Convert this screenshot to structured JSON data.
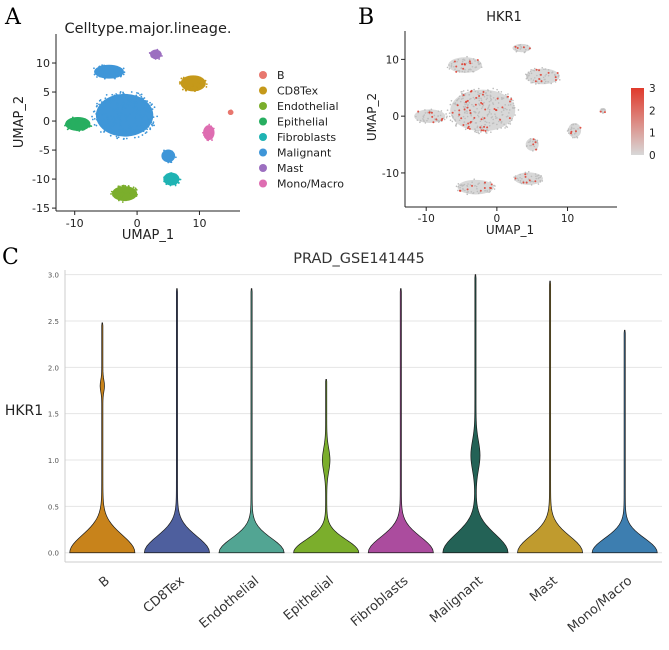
{
  "chart_data": [
    {
      "panel": "A",
      "type": "scatter",
      "title": "Celltype.major.lineage.",
      "xlabel": "UMAP_1",
      "ylabel": "UMAP_2",
      "xticks": [
        -10,
        0,
        10
      ],
      "yticks": [
        10,
        5,
        0,
        -5,
        -10,
        -15
      ],
      "xlim": [
        -13,
        16.5
      ],
      "ylim": [
        -15.5,
        15
      ],
      "legend": [
        {
          "label": "B",
          "color": "#E8776E"
        },
        {
          "label": "CD8Tex",
          "color": "#C5991A"
        },
        {
          "label": "Endothelial",
          "color": "#7BAE2C"
        },
        {
          "label": "Epithelial",
          "color": "#27AE60"
        },
        {
          "label": "Fibroblasts",
          "color": "#1FB3B3"
        },
        {
          "label": "Malignant",
          "color": "#3F96D8"
        },
        {
          "label": "Mast",
          "color": "#9C6FC0"
        },
        {
          "label": "Mono/Macro",
          "color": "#DE6DB1"
        }
      ],
      "clusters": [
        {
          "celltype": "Malignant",
          "cx": -2,
          "cy": 1,
          "rx": 5,
          "ry": 4
        },
        {
          "celltype": "Malignant",
          "cx": -4.5,
          "cy": 8.5,
          "rx": 2.6,
          "ry": 1.3
        },
        {
          "celltype": "Malignant",
          "cx": 5,
          "cy": -6,
          "rx": 1.2,
          "ry": 1.2
        },
        {
          "celltype": "Epithelial",
          "cx": -9.5,
          "cy": -0.5,
          "rx": 2.2,
          "ry": 1.3
        },
        {
          "celltype": "Endothelial",
          "cx": -2,
          "cy": -12.5,
          "rx": 2.2,
          "ry": 1.4
        },
        {
          "celltype": "Fibroblasts",
          "cx": 5.5,
          "cy": -10,
          "rx": 1.4,
          "ry": 1.2
        },
        {
          "celltype": "CD8Tex",
          "cx": 9,
          "cy": 6.5,
          "rx": 2.2,
          "ry": 1.5
        },
        {
          "celltype": "Mono/Macro",
          "cx": 11.5,
          "cy": -2,
          "rx": 1.0,
          "ry": 1.4
        },
        {
          "celltype": "Mast",
          "cx": 3,
          "cy": 11.5,
          "rx": 1.0,
          "ry": 0.9
        },
        {
          "celltype": "B",
          "cx": 15,
          "cy": 1.5,
          "rx": 0.5,
          "ry": 0.5
        }
      ]
    },
    {
      "panel": "B",
      "type": "scatter",
      "title": "HKR1",
      "xlabel": "UMAP_1",
      "ylabel": "UMAP_2",
      "xticks": [
        -10,
        0,
        10
      ],
      "yticks": [
        10,
        0,
        -10
      ],
      "xlim": [
        -13,
        17
      ],
      "ylim": [
        -16,
        15
      ],
      "colorbar": {
        "min": 0,
        "max": 3,
        "ticks": [
          3,
          2,
          1,
          0
        ],
        "low_color": "#D8D8D8",
        "high_color": "#E03A2C"
      },
      "clusters": [
        {
          "cx": -2,
          "cy": 1,
          "rx": 5,
          "ry": 4
        },
        {
          "cx": -4.5,
          "cy": 9,
          "rx": 2.6,
          "ry": 1.5
        },
        {
          "cx": -9.5,
          "cy": 0,
          "rx": 2.4,
          "ry": 1.3
        },
        {
          "cx": -3,
          "cy": -12.5,
          "rx": 2.8,
          "ry": 1.4
        },
        {
          "cx": 4.5,
          "cy": -11,
          "rx": 2.2,
          "ry": 1.2
        },
        {
          "cx": 6.5,
          "cy": 7,
          "rx": 2.6,
          "ry": 1.5
        },
        {
          "cx": 3.5,
          "cy": 12,
          "rx": 1.4,
          "ry": 0.8
        },
        {
          "cx": 11,
          "cy": -2.5,
          "rx": 1.0,
          "ry": 1.4
        },
        {
          "cx": 15,
          "cy": 1,
          "rx": 0.5,
          "ry": 0.5
        },
        {
          "cx": 5,
          "cy": -5,
          "rx": 1.0,
          "ry": 1.2
        }
      ]
    },
    {
      "panel": "C",
      "type": "violin",
      "title": "PRAD_GSE141445",
      "ylabel": "HKR1",
      "yticks": [
        0.0,
        0.5,
        1.0,
        1.5,
        2.0,
        2.5,
        3.0
      ],
      "ytick_labels": [
        "0.0",
        "0.5",
        "1.0",
        "1.5",
        "2.0",
        "2.5",
        "3.0"
      ],
      "ylim": [
        -0.1,
        3.05
      ],
      "categories": [
        "B",
        "CD8Tex",
        "Endothelial",
        "Epithelial",
        "Fibroblasts",
        "Malignant",
        "Mast",
        "Mono/Macro"
      ],
      "max_values": [
        2.48,
        2.85,
        2.85,
        1.87,
        2.85,
        3.0,
        2.93,
        2.4
      ],
      "colors": [
        "#C8831B",
        "#4E5F9E",
        "#52A593",
        "#7BAE2C",
        "#AB4C9E",
        "#236256",
        "#C09B2E",
        "#3D7EB0"
      ],
      "violins": [
        {
          "category": "B",
          "base": 0.27,
          "bumps": [
            [
              1.8,
              0.04
            ]
          ]
        },
        {
          "category": "CD8Tex",
          "base": 0.25,
          "bumps": []
        },
        {
          "category": "Endothelial",
          "base": 0.22,
          "bumps": []
        },
        {
          "category": "Epithelial",
          "base": 0.2,
          "bumps": [
            [
              1.0,
              0.08
            ]
          ]
        },
        {
          "category": "Fibroblasts",
          "base": 0.24,
          "bumps": []
        },
        {
          "category": "Malignant",
          "base": 0.28,
          "bumps": [
            [
              1.05,
              0.1
            ]
          ]
        },
        {
          "category": "Mast",
          "base": 0.25,
          "bumps": []
        },
        {
          "category": "Mono/Macro",
          "base": 0.22,
          "bumps": []
        }
      ]
    }
  ]
}
